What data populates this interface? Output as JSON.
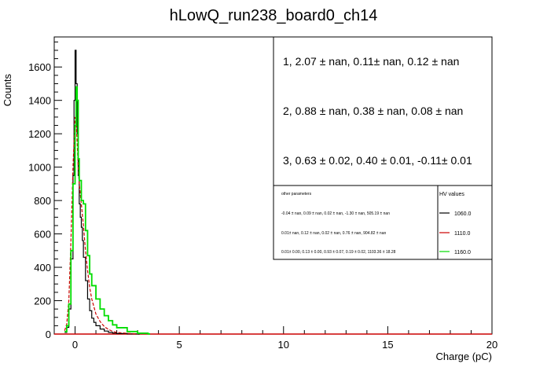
{
  "chart_data": {
    "type": "line",
    "title": "hLowQ_run238_board0_ch14",
    "xlabel": "Charge (pC)",
    "ylabel": "Counts",
    "xlim": [
      -1.0,
      20.0
    ],
    "ylim": [
      0,
      1780
    ],
    "x_ticks": [
      0,
      5,
      10,
      15,
      20
    ],
    "y_ticks": [
      0,
      200,
      400,
      600,
      800,
      1000,
      1200,
      1400,
      1600
    ],
    "grid": false,
    "legend_position": "top-right",
    "fit_results": [
      "1, 2.07 ± nan, 0.11± nan, 0.12 ± nan",
      "2, 0.88 ± nan, 0.38 ± nan, 0.08 ± nan",
      "3, 0.63 ± 0.02, 0.40 ± 0.01, -0.11± 0.01"
    ],
    "other_parameters_header": "other parameters",
    "other_parameters": [
      "-0.04 ± nan, 0.09 ± nan, 0.02 ± nan, -1.30 ± nan, 505.19 ± nan",
      "0.01± nan, 0.12 ± nan, 0.02 ± nan, 0.76 ± nan, 904.82 ± nan",
      "0.01± 0.00, 0.13 ± 0.00, 0.93 ± 0.07, 0.19 ± 0.02, 1103.36 ± 18.28"
    ],
    "hv_header": "HV values",
    "series": [
      {
        "name": "1060.0",
        "color": "#000000",
        "style": "step",
        "x": [
          -0.5,
          -0.4,
          -0.3,
          -0.2,
          -0.1,
          -0.05,
          0.0,
          0.05,
          0.1,
          0.15,
          0.2,
          0.25,
          0.3,
          0.35,
          0.4,
          0.5,
          0.6,
          0.7,
          0.8,
          0.9,
          1.0,
          1.2,
          1.4,
          1.6,
          1.8,
          2.0,
          2.5,
          3.0
        ],
        "values": [
          10,
          40,
          150,
          450,
          950,
          1400,
          1700,
          1500,
          1200,
          950,
          780,
          700,
          640,
          560,
          460,
          320,
          210,
          140,
          95,
          70,
          50,
          30,
          18,
          10,
          6,
          3,
          1,
          0
        ]
      },
      {
        "name": "1110.0",
        "color": "#cc0000",
        "style": "dashed",
        "x": [
          -0.5,
          -0.4,
          -0.3,
          -0.2,
          -0.1,
          0.0,
          0.05,
          0.1,
          0.15,
          0.2,
          0.3,
          0.4,
          0.5,
          0.6,
          0.7,
          0.8,
          1.0,
          1.2,
          1.4,
          1.6,
          1.8,
          2.0,
          2.5,
          3.0
        ],
        "values": [
          20,
          60,
          200,
          550,
          1000,
          1300,
          1280,
          1150,
          1000,
          900,
          780,
          650,
          500,
          380,
          280,
          210,
          120,
          75,
          45,
          28,
          16,
          10,
          4,
          1
        ]
      },
      {
        "name": "1160.0",
        "color": "#00dd00",
        "style": "step",
        "x": [
          -0.5,
          -0.4,
          -0.3,
          -0.2,
          -0.1,
          0.0,
          0.05,
          0.1,
          0.15,
          0.2,
          0.3,
          0.4,
          0.5,
          0.6,
          0.7,
          0.8,
          1.0,
          1.2,
          1.4,
          1.6,
          1.8,
          2.0,
          2.5,
          3.0,
          3.5
        ],
        "values": [
          15,
          50,
          180,
          500,
          900,
          1250,
          1480,
          1400,
          1050,
          920,
          800,
          780,
          620,
          470,
          360,
          290,
          210,
          150,
          110,
          80,
          55,
          38,
          15,
          5,
          1
        ]
      }
    ],
    "baseline_series_color": "#cc0000"
  }
}
